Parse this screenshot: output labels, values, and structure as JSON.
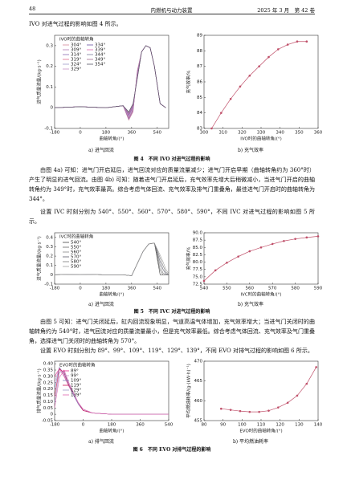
{
  "header": {
    "page": "48",
    "journal": "内燃机与动力装置",
    "issue": "2025 年 3 月　第 42 卷"
  },
  "paragraphs": [
    "IVO 对进气过程的影响如图 4 所示。",
    "由图 4a) 可知：进气门开启延后，进气回流对应的质量流量减少；进气门开启早期（曲轴转角约为 360°时）产生了明显的进气回流。由图 4b) 可知：随着进气门开启延后，充气效率先增大后稍微减小，当进气门开启的曲轴转角约为 349°时，充气效率最高。综合考虑气体回流、充气效率及排气门重叠角，最佳进气门开启时的曲轴转角为 344°。",
    "设置 IVC 时刻分别为 540°、550°、560°、570°、580°、590°，不同 IVC 对进气过程的影响如图 5 所示。",
    "由图 5 可知：进气门关闭延后，缸内回流现象明显，气道高温气体增加，充气效率增大；当进气门关闭时的曲轴转角约为 540°时，进气回流对应的质量流量最小，但是充气效率最低。综合考虑气体回流、充气效率及气门重叠角，选择进气门关闭时的曲轴转角为 570°。",
    "设置 EVO 时刻分别为 89°、99°、109°、119°、129°、139°，不同 EVO 对排气过程的影响如图 6 所示。"
  ],
  "figures": [
    {
      "caption": "图 4　不同 IVO 对进气过程的影响",
      "panels": [
        "a) 进气回流",
        "b) 充气效率"
      ]
    },
    {
      "caption": "图 5　不同 IVC 对进气过程的影响",
      "panels": [
        "a) 进气回流",
        "b) 充气效率"
      ]
    },
    {
      "caption": "图 6　不同 EVO 对排气过程的影响",
      "panels": [
        "a) 排气回流",
        "b) 平均燃油耗率"
      ]
    }
  ],
  "chart_data": [
    {
      "type": "line",
      "xlabel": "曲轴转角/(°)",
      "ylabel": "进气质量流量/(kg·s⁻¹)",
      "legend_title": "IVO时的曲轴转角",
      "legend": "upper left",
      "legend_columns": 2,
      "x": [
        -180,
        0,
        180,
        300,
        340,
        370,
        400,
        430,
        460,
        490,
        520,
        560,
        600
      ],
      "xlim": [
        -180,
        620
      ],
      "xticks": [
        -180,
        0,
        180,
        360,
        540
      ],
      "ylim": [
        -0.1,
        0.35
      ],
      "yticks": [
        -0.1,
        0,
        0.1,
        0.2,
        0.3
      ],
      "series": [
        {
          "name": "304°",
          "color": "#d4889a",
          "values": [
            0,
            0.005,
            0,
            0.01,
            -0.06,
            -0.02,
            0.18,
            0.27,
            0.3,
            0.29,
            0.2,
            0.02,
            0
          ]
        },
        {
          "name": "309°",
          "color": "#b07bb5",
          "values": [
            0,
            0.005,
            0,
            0.01,
            -0.056,
            -0.016,
            0.176,
            0.27,
            0.3,
            0.29,
            0.2,
            0.02,
            0
          ]
        },
        {
          "name": "314°",
          "color": "#8c6bb1",
          "values": [
            0,
            0.005,
            0,
            0.01,
            -0.052,
            -0.012,
            0.172,
            0.27,
            0.3,
            0.29,
            0.2,
            0.02,
            0
          ]
        },
        {
          "name": "319°",
          "color": "#e06c8c",
          "values": [
            0,
            0.005,
            0,
            0.01,
            -0.048,
            -0.008,
            0.168,
            0.27,
            0.3,
            0.29,
            0.2,
            0.02,
            0
          ]
        },
        {
          "name": "324°",
          "color": "#9e9ac8",
          "values": [
            0,
            0.005,
            0,
            0.01,
            -0.044,
            -0.004,
            0.164,
            0.27,
            0.3,
            0.29,
            0.2,
            0.02,
            0
          ]
        },
        {
          "name": "329°",
          "color": "#c994c7",
          "values": [
            0,
            0.005,
            0,
            0.01,
            -0.04,
            0,
            0.16,
            0.27,
            0.3,
            0.29,
            0.2,
            0.02,
            0
          ]
        },
        {
          "name": "334°",
          "color": "#6a51a3",
          "values": [
            0,
            0.005,
            0,
            0.01,
            -0.036,
            0.004,
            0.156,
            0.27,
            0.3,
            0.29,
            0.2,
            0.02,
            0
          ]
        },
        {
          "name": "339°",
          "color": "#df65b0",
          "values": [
            0,
            0.005,
            0,
            0.01,
            -0.032,
            0.008,
            0.152,
            0.27,
            0.3,
            0.29,
            0.2,
            0.02,
            0
          ]
        },
        {
          "name": "344°",
          "color": "#7b7b9b",
          "values": [
            0,
            0.005,
            0,
            0.01,
            -0.028,
            0.012,
            0.148,
            0.27,
            0.3,
            0.29,
            0.2,
            0.02,
            0
          ]
        },
        {
          "name": "349°",
          "color": "#a36b8f",
          "values": [
            0,
            0.005,
            0,
            0.01,
            -0.024,
            0.016,
            0.144,
            0.27,
            0.3,
            0.29,
            0.2,
            0.02,
            0
          ]
        },
        {
          "name": "354°",
          "color": "#555566",
          "values": [
            0,
            0.005,
            0,
            0.01,
            -0.02,
            0.02,
            0.14,
            0.27,
            0.3,
            0.29,
            0.2,
            0.02,
            0
          ]
        }
      ]
    },
    {
      "type": "line",
      "xlabel": "IVO时的曲轴转角/(°)",
      "ylabel": "充气效率/%",
      "marker": "circle",
      "color": "#c0506a",
      "x": [
        304,
        309,
        314,
        319,
        324,
        329,
        334,
        339,
        344,
        349,
        354
      ],
      "xlim": [
        300,
        360
      ],
      "xticks": [
        300,
        310,
        320,
        330,
        340,
        350,
        360
      ],
      "ylim": [
        83,
        89
      ],
      "yticks": [
        83,
        84,
        85,
        86,
        87,
        88,
        89
      ],
      "values": [
        83.0,
        84.0,
        84.9,
        85.7,
        86.4,
        87.0,
        87.6,
        88.1,
        88.4,
        88.6,
        88.6
      ]
    },
    {
      "type": "line",
      "xlabel": "曲轴转角/(°)",
      "ylabel": "进气质量流量/(kg·s⁻¹)",
      "legend_title": "IVC时的曲轴转角",
      "legend": "upper left",
      "legend_columns": 1,
      "x": [
        -180,
        0,
        180,
        300,
        360,
        400,
        440,
        480,
        520,
        560,
        580,
        600,
        620
      ],
      "xlim": [
        -180,
        620
      ],
      "xticks": [
        -180,
        0,
        180,
        360,
        540
      ],
      "ylim": [
        -0.1,
        0.45
      ],
      "yticks": [
        -0.1,
        0,
        0.1,
        0.2,
        0.3,
        0.4
      ],
      "series": [
        {
          "name": "540°",
          "color": "#444444",
          "values": [
            0,
            0.005,
            0,
            0,
            -0.01,
            0.12,
            0.25,
            0.33,
            0.34,
            0,
            0,
            0,
            0
          ]
        },
        {
          "name": "550°",
          "color": "#666666",
          "values": [
            0,
            0.005,
            0,
            0,
            -0.01,
            0.12,
            0.25,
            0.33,
            0.34,
            0.05,
            0,
            0,
            0
          ]
        },
        {
          "name": "560°",
          "color": "#888888",
          "values": [
            0,
            0.005,
            0,
            0,
            -0.01,
            0.12,
            0.25,
            0.33,
            0.34,
            0.1,
            0.02,
            0,
            0
          ]
        },
        {
          "name": "570°",
          "color": "#5a5a6a",
          "values": [
            0,
            0.005,
            0,
            0,
            -0.01,
            0.12,
            0.25,
            0.33,
            0.34,
            0.14,
            0.06,
            0.01,
            0
          ]
        },
        {
          "name": "580°",
          "color": "#7a7a7a",
          "values": [
            0,
            0.005,
            0,
            0,
            -0.01,
            0.12,
            0.25,
            0.33,
            0.34,
            0.18,
            0.1,
            0.03,
            0
          ]
        },
        {
          "name": "590°",
          "color": "#a0a0a0",
          "values": [
            0,
            0.005,
            0,
            0,
            -0.01,
            0.12,
            0.25,
            0.33,
            0.34,
            0.21,
            0.14,
            0.06,
            0.01
          ]
        }
      ]
    },
    {
      "type": "line",
      "xlabel": "IVC时的曲轴转角/(°)",
      "ylabel": "充气效率/%",
      "marker": "circle",
      "color": "#c0506a",
      "x": [
        540,
        545,
        550,
        555,
        560,
        565,
        570,
        575,
        580,
        585,
        590
      ],
      "xlim": [
        540,
        590
      ],
      "xticks": [
        540,
        550,
        560,
        570,
        580,
        590
      ],
      "ylim": [
        72.5,
        90
      ],
      "yticks": [
        72.5,
        {
          "value": 75,
          "label": "75.0"
        },
        77.5,
        {
          "value": 80,
          "label": "80.0"
        },
        82.5,
        {
          "value": 85,
          "label": "85.0"
        },
        87.5,
        {
          "value": 90,
          "label": "90.0"
        }
      ],
      "values": [
        73.6,
        77.2,
        79.8,
        81.9,
        83.7,
        85.0,
        86.2,
        87.2,
        87.9,
        88.4,
        88.8
      ]
    },
    {
      "type": "line",
      "xlabel": "曲轴转角/(°)",
      "ylabel": "排气质量流量/(kg·s⁻¹)",
      "legend_title": "EVO时的曲轴转角",
      "legend": "upper left",
      "legend_columns": 1,
      "x": [
        -180,
        -150,
        -120,
        -90,
        -60,
        -30,
        0,
        60,
        180,
        360,
        540
      ],
      "xlim": [
        -180,
        540
      ],
      "xticks": [
        -180,
        0,
        180,
        360,
        540
      ],
      "ylim": [
        -0.05,
        0.42
      ],
      "yticks": [
        -0.05,
        0,
        0.05,
        {
          "value": 0.1,
          "label": "0.10"
        },
        0.15,
        {
          "value": 0.2,
          "label": "0.20"
        },
        0.25,
        {
          "value": 0.3,
          "label": "0.30"
        },
        0.35,
        {
          "value": 0.4,
          "label": "0.40"
        }
      ],
      "series": [
        {
          "name": "89°",
          "color": "#e7298a",
          "values": [
            0.3,
            0.36,
            0.3,
            0.22,
            0.15,
            0.08,
            0.03,
            0.01,
            0,
            0,
            0
          ]
        },
        {
          "name": "99°",
          "color": "#c994c7",
          "values": [
            0.25,
            0.37,
            0.31,
            0.22,
            0.15,
            0.08,
            0.03,
            0.01,
            0,
            0,
            0
          ]
        },
        {
          "name": "109°",
          "color": "#807dba",
          "values": [
            0.2,
            0.37,
            0.32,
            0.23,
            0.15,
            0.08,
            0.03,
            0.01,
            0,
            0,
            0
          ]
        },
        {
          "name": "119°",
          "color": "#ce1256",
          "values": [
            0.14,
            0.36,
            0.33,
            0.23,
            0.16,
            0.09,
            0.03,
            0.01,
            0,
            0,
            0
          ]
        },
        {
          "name": "129°",
          "color": "#9e9ac8",
          "values": [
            0.09,
            0.33,
            0.34,
            0.24,
            0.16,
            0.09,
            0.04,
            0.01,
            0,
            0,
            0
          ]
        },
        {
          "name": "139°",
          "color": "#df65b0",
          "values": [
            0.05,
            0.29,
            0.35,
            0.25,
            0.17,
            0.09,
            0.04,
            0.01,
            0,
            0,
            0
          ]
        }
      ]
    },
    {
      "type": "line",
      "xlabel": "EVO时的曲轴转角/(°)",
      "ylabel": "平均燃油耗率/(g·(kW·h)⁻¹)",
      "marker": "circle",
      "color": "#c0506a",
      "x": [
        89,
        94,
        99,
        104,
        109,
        114,
        119,
        124,
        129,
        134,
        139
      ],
      "xlim": [
        80,
        140
      ],
      "xticks": [
        80,
        90,
        100,
        110,
        120,
        130,
        140
      ],
      "ylim": [
        455,
        470
      ],
      "yticks": [
        455,
        460,
        465,
        470
      ],
      "values": [
        458,
        457.7,
        457.4,
        457.2,
        457.2,
        457.5,
        458.3,
        459.5,
        461.3,
        464.3,
        468.5
      ]
    }
  ]
}
